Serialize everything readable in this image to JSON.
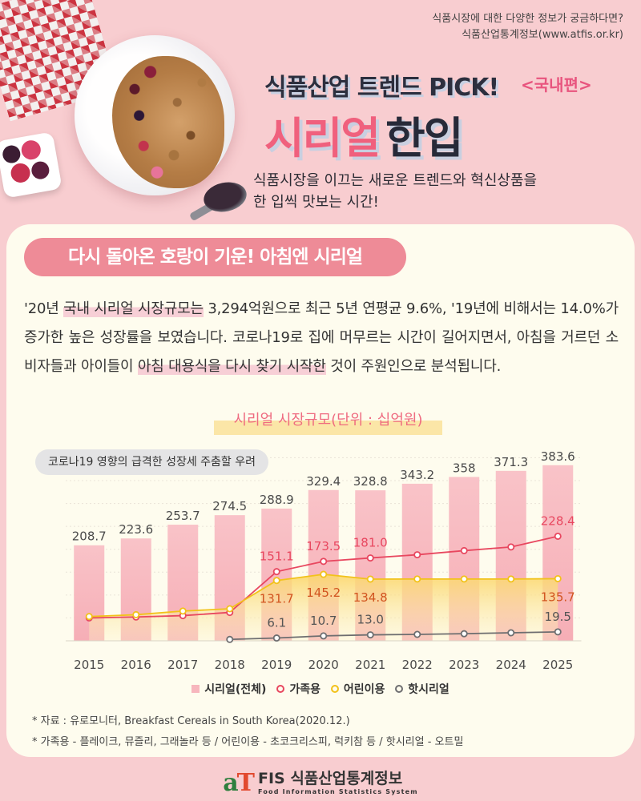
{
  "header": {
    "info_line1": "식품시장에 대한 다양한 정보가 궁금하다면?",
    "info_line2": "식품산업통계정보(www.atfis.or.kr)"
  },
  "title": {
    "pick": "식품산업 트렌드 PICK!",
    "tag": "<국내편>",
    "main_pink": "시리얼",
    "main_dark": "한입",
    "subtitle_line1": "식품시장을 이끄는 새로운 트렌드와 혁신상품을",
    "subtitle_line2": "한 입씩 맛보는 시간!"
  },
  "section": {
    "heading": "다시 돌아온 호랑이 기운! 아침엔 시리얼",
    "para_part1": "'20년 ",
    "para_hl1": "국내 시리얼 시장규모는",
    "para_part2": " 3,294억원으로 최근 5년 연평균 9.6%, '19년에 비해서는 14.0%가 증가한 높은 성장률을 보였습니다. 코로나19로 집에 머무르는 시간이 길어지면서, 아침을 거르던 소비자들과 아이들이 ",
    "para_hl2": "아침 대용식을 다시 찾기 시작한",
    "para_part3": " 것이 주원인으로 분석됩니다."
  },
  "chart_data": {
    "type": "bar",
    "title": "시리얼 시장규모(단위 : 십억원)",
    "annotation": "코로나19 영향의 급격한 성장세 주춤할 우려",
    "categories": [
      "2015",
      "2016",
      "2017",
      "2018",
      "2019",
      "2020",
      "2021",
      "2022",
      "2023",
      "2024",
      "2025"
    ],
    "ylim": [
      0,
      420
    ],
    "series": [
      {
        "name": "시리얼(전체)",
        "kind": "bar",
        "color": "#f7b6bd",
        "values": [
          208.7,
          223.6,
          253.7,
          274.5,
          288.9,
          329.4,
          328.8,
          343.2,
          358,
          371.3,
          383.6
        ],
        "labels": [
          "208.7",
          "223.6",
          "253.7",
          "274.5",
          "288.9",
          "329.4",
          "328.8",
          "343.2",
          "358",
          "371.3",
          "383.6"
        ]
      },
      {
        "name": "가족용",
        "kind": "line",
        "color": "#e8475f",
        "values": [
          50,
          52,
          55,
          62,
          151.1,
          173.5,
          181.0,
          188,
          197,
          205,
          228.4
        ],
        "labels": [
          "",
          "",
          "",
          "",
          "151.1",
          "173.5",
          "181.0",
          "",
          "",
          "",
          "228.4"
        ]
      },
      {
        "name": "어린이용",
        "kind": "line",
        "color": "#f2c21a",
        "values": [
          53,
          57,
          65,
          70,
          131.7,
          145.2,
          134.8,
          135,
          135,
          135,
          135.7
        ],
        "labels": [
          "",
          "",
          "",
          "",
          "131.7",
          "145.2",
          "134.8",
          "",
          "",
          "",
          "135.7"
        ]
      },
      {
        "name": "핫시리얼",
        "kind": "line",
        "color": "#6e6e70",
        "values": [
          null,
          null,
          null,
          3,
          6.1,
          10.7,
          13.0,
          14,
          15.5,
          17.5,
          19.5
        ],
        "labels": [
          "",
          "",
          "",
          "",
          "6.1",
          "10.7",
          "13.0",
          "",
          "",
          "",
          "19.5"
        ]
      }
    ]
  },
  "footnotes": {
    "line1": "* 자료 : 유로모니터, Breakfast Cereals in South Korea(2020.12.)",
    "line2": "* 가족용 - 플레이크, 뮤즐리, 그래놀라 등 / 어린이용 - 초코크리스피, 럭키참 등 / 핫시리얼 - 오트밀"
  },
  "footer": {
    "logo_a": "a",
    "logo_t": "T",
    "logo_main": "FIS 식품산업통계정보",
    "logo_sub": "Food Information Statistics System"
  }
}
